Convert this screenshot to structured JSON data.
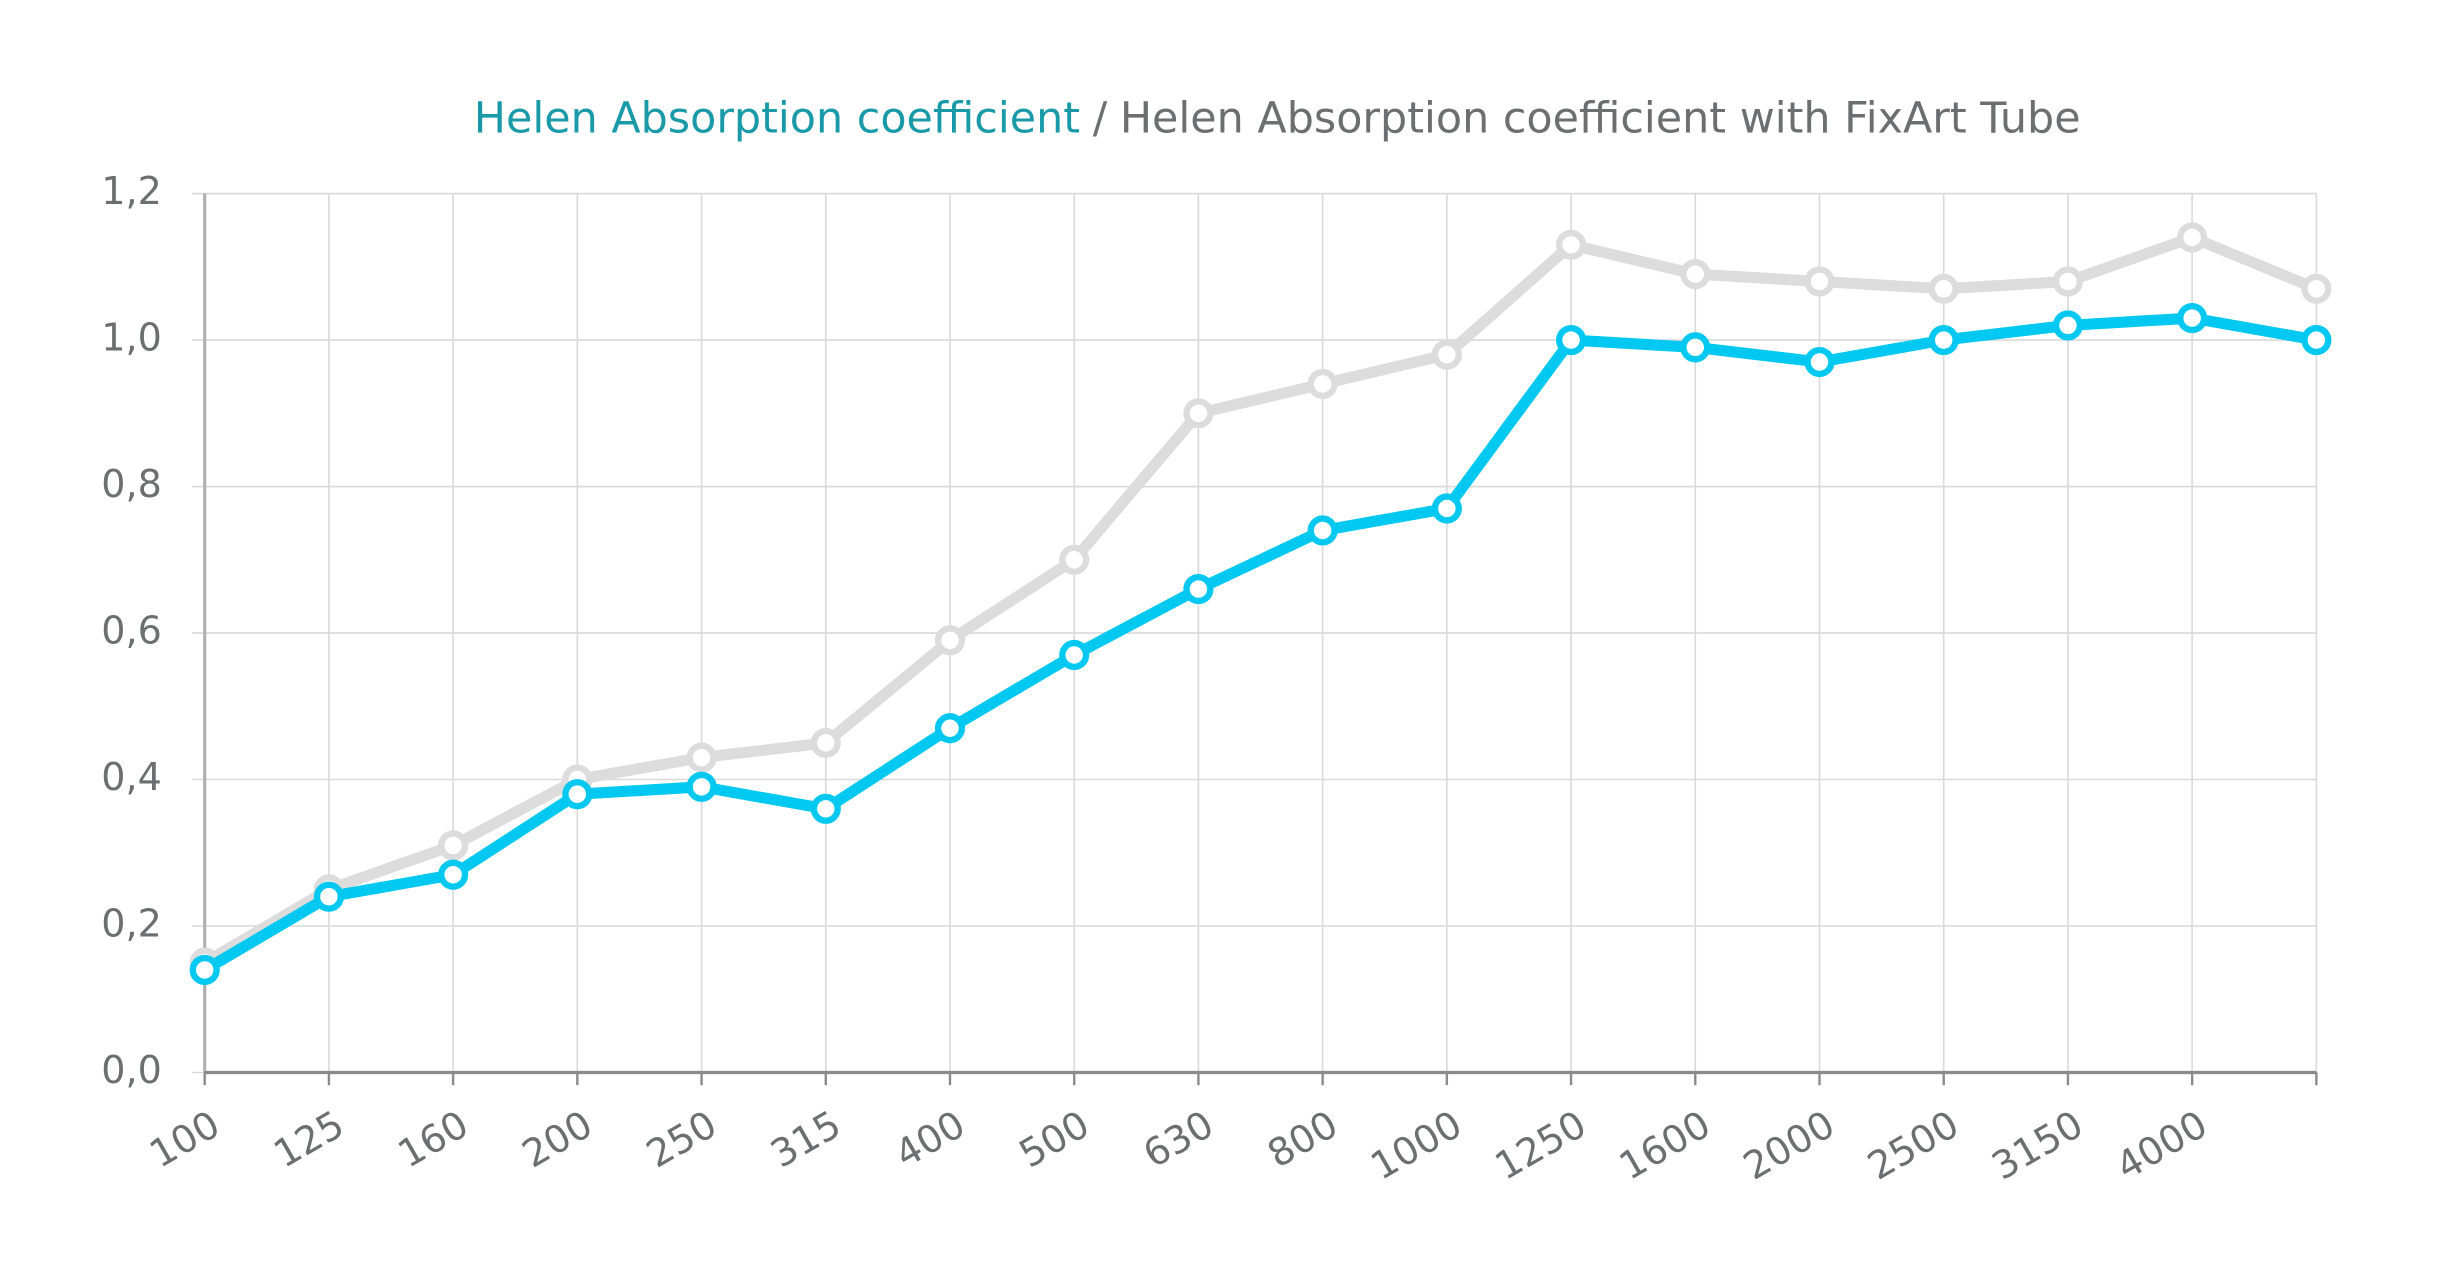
{
  "chart_data": {
    "type": "line",
    "categories": [
      "100",
      "125",
      "160",
      "200",
      "250",
      "315",
      "400",
      "500",
      "630",
      "800",
      "1000",
      "1250",
      "1600",
      "2000",
      "2500",
      "3150",
      "4000",
      null
    ],
    "legend_separator": "/",
    "series": [
      {
        "name": "Helen Absorption coefficient",
        "color": "#00c8f0",
        "values": [
          0.14,
          0.24,
          0.27,
          0.38,
          0.39,
          0.36,
          0.47,
          0.57,
          0.66,
          0.74,
          0.77,
          1.0,
          0.99,
          0.97,
          1.0,
          1.02,
          1.03,
          1.0
        ]
      },
      {
        "name": "Helen Absorption coefficient with FixArt Tube",
        "color": "#dcdcdc",
        "values": [
          0.15,
          0.25,
          0.31,
          0.4,
          0.43,
          0.45,
          0.59,
          0.7,
          0.9,
          0.94,
          0.98,
          1.13,
          1.09,
          1.08,
          1.07,
          1.08,
          1.14,
          1.07
        ]
      }
    ],
    "ylim": [
      0,
      1.2
    ],
    "yticks": [
      {
        "value": 0,
        "label": "0,0"
      },
      {
        "value": 0.2,
        "label": "0,2"
      },
      {
        "value": 0.4,
        "label": "0,4"
      },
      {
        "value": 0.6,
        "label": "0,6"
      },
      {
        "value": 0.8,
        "label": "0,8"
      },
      {
        "value": 1.0,
        "label": "1,0"
      },
      {
        "value": 1.2,
        "label": "1,2"
      }
    ],
    "grid": true
  }
}
